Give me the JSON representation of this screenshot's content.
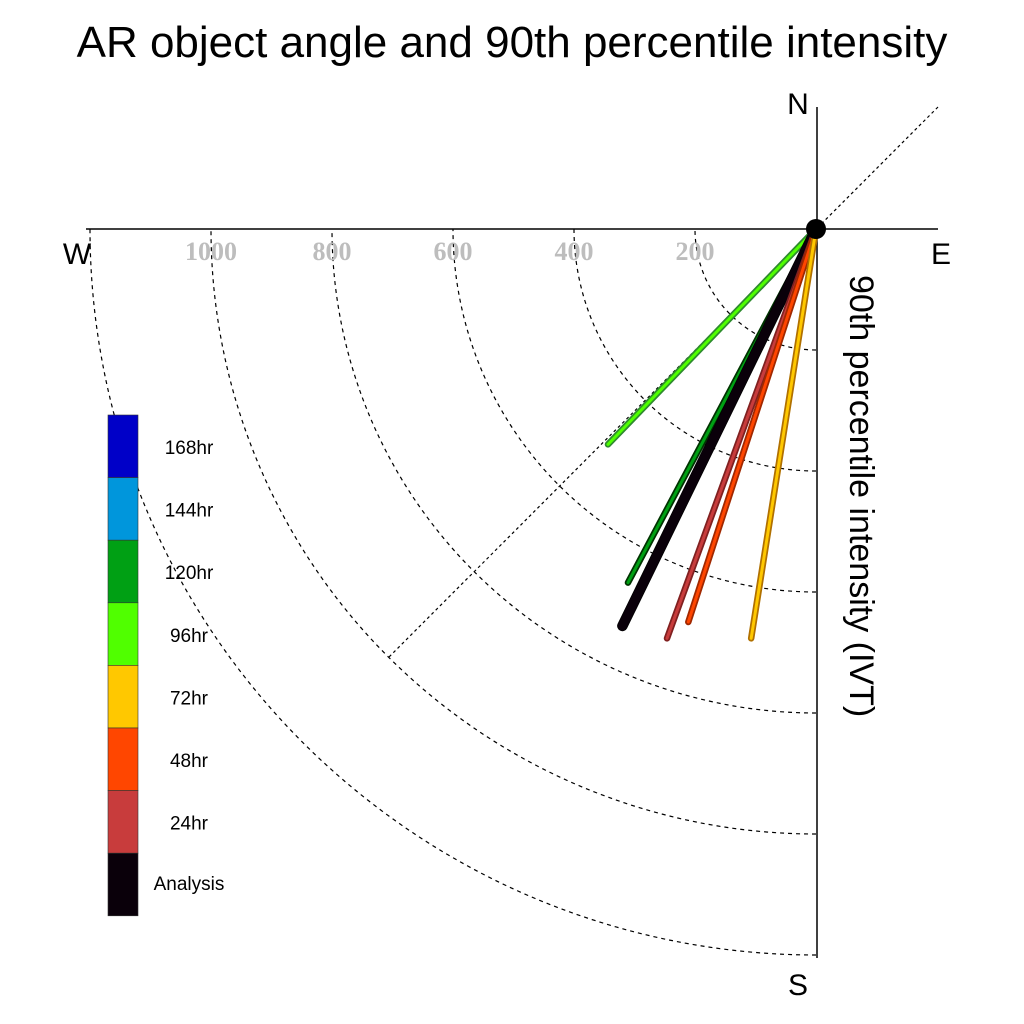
{
  "chart_data": {
    "type": "polar-vector",
    "title": "AR object angle and 90th percentile intensity",
    "ylabel": "90th percentile intensity (IVT)",
    "compass": {
      "north": "N",
      "south": "S",
      "east": "E",
      "west": "W"
    },
    "radial_ticks": [
      200,
      400,
      600,
      800,
      1000
    ],
    "radial_range": [
      0,
      1200
    ],
    "grid": true,
    "legend_position": "left",
    "legend": [
      {
        "label": "168hr",
        "color": "#0000c8"
      },
      {
        "label": "144hr",
        "color": "#0096dc"
      },
      {
        "label": "120hr",
        "color": "#00a014"
      },
      {
        "label": "96hr",
        "color": "#50ff00"
      },
      {
        "label": "72hr",
        "color": "#ffc800"
      },
      {
        "label": "48hr",
        "color": "#ff4600"
      },
      {
        "label": "24hr",
        "color": "#c83c3c"
      },
      {
        "label": "Analysis",
        "color": "#0a000a"
      }
    ],
    "series": [
      {
        "name": "96hr",
        "color": "#50ff00",
        "edge": "#2e8b2e",
        "bearing": 224,
        "intensity": 495
      },
      {
        "name": "120hr",
        "color": "#00a014",
        "edge": "#003300",
        "bearing": 208,
        "intensity": 662
      },
      {
        "name": "Analysis",
        "color": "#0a000a",
        "edge": "#000000",
        "bearing": 206,
        "intensity": 730
      },
      {
        "name": "24hr",
        "color": "#c83c3c",
        "edge": "#802020",
        "bearing": 200,
        "intensity": 720
      },
      {
        "name": "48hr",
        "color": "#ff4600",
        "edge": "#a02800",
        "bearing": 198,
        "intensity": 683
      },
      {
        "name": "72hr",
        "color": "#ffc800",
        "edge": "#b07000",
        "bearing": 189,
        "intensity": 685
      }
    ]
  }
}
